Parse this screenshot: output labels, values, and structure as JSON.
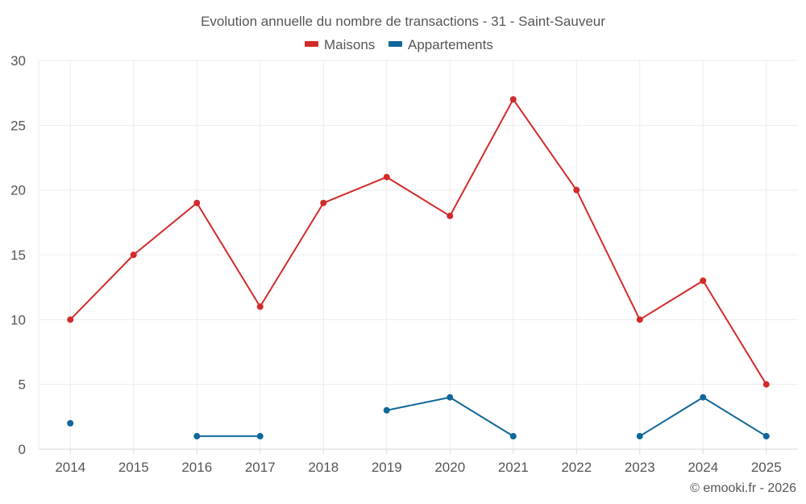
{
  "chart_data": {
    "type": "line",
    "title": "Evolution annuelle du nombre de transactions - 31 - Saint-Sauveur",
    "categories": [
      "2014",
      "2015",
      "2016",
      "2017",
      "2018",
      "2019",
      "2020",
      "2021",
      "2022",
      "2023",
      "2024",
      "2025"
    ],
    "series": [
      {
        "name": "Maisons",
        "color": "#d32a2a",
        "values": [
          10,
          15,
          19,
          11,
          19,
          21,
          18,
          27,
          20,
          10,
          13,
          5
        ]
      },
      {
        "name": "Appartements",
        "color": "#0f6699",
        "values": [
          2,
          null,
          1,
          1,
          null,
          3,
          4,
          1,
          null,
          1,
          4,
          1
        ]
      }
    ],
    "ylim": [
      0,
      30
    ],
    "yticks": [
      0,
      5,
      10,
      15,
      20,
      25,
      30
    ],
    "xlabel": "",
    "ylabel": "",
    "grid": true,
    "legend_position": "top-center"
  },
  "credit": "© emooki.fr - 2026"
}
